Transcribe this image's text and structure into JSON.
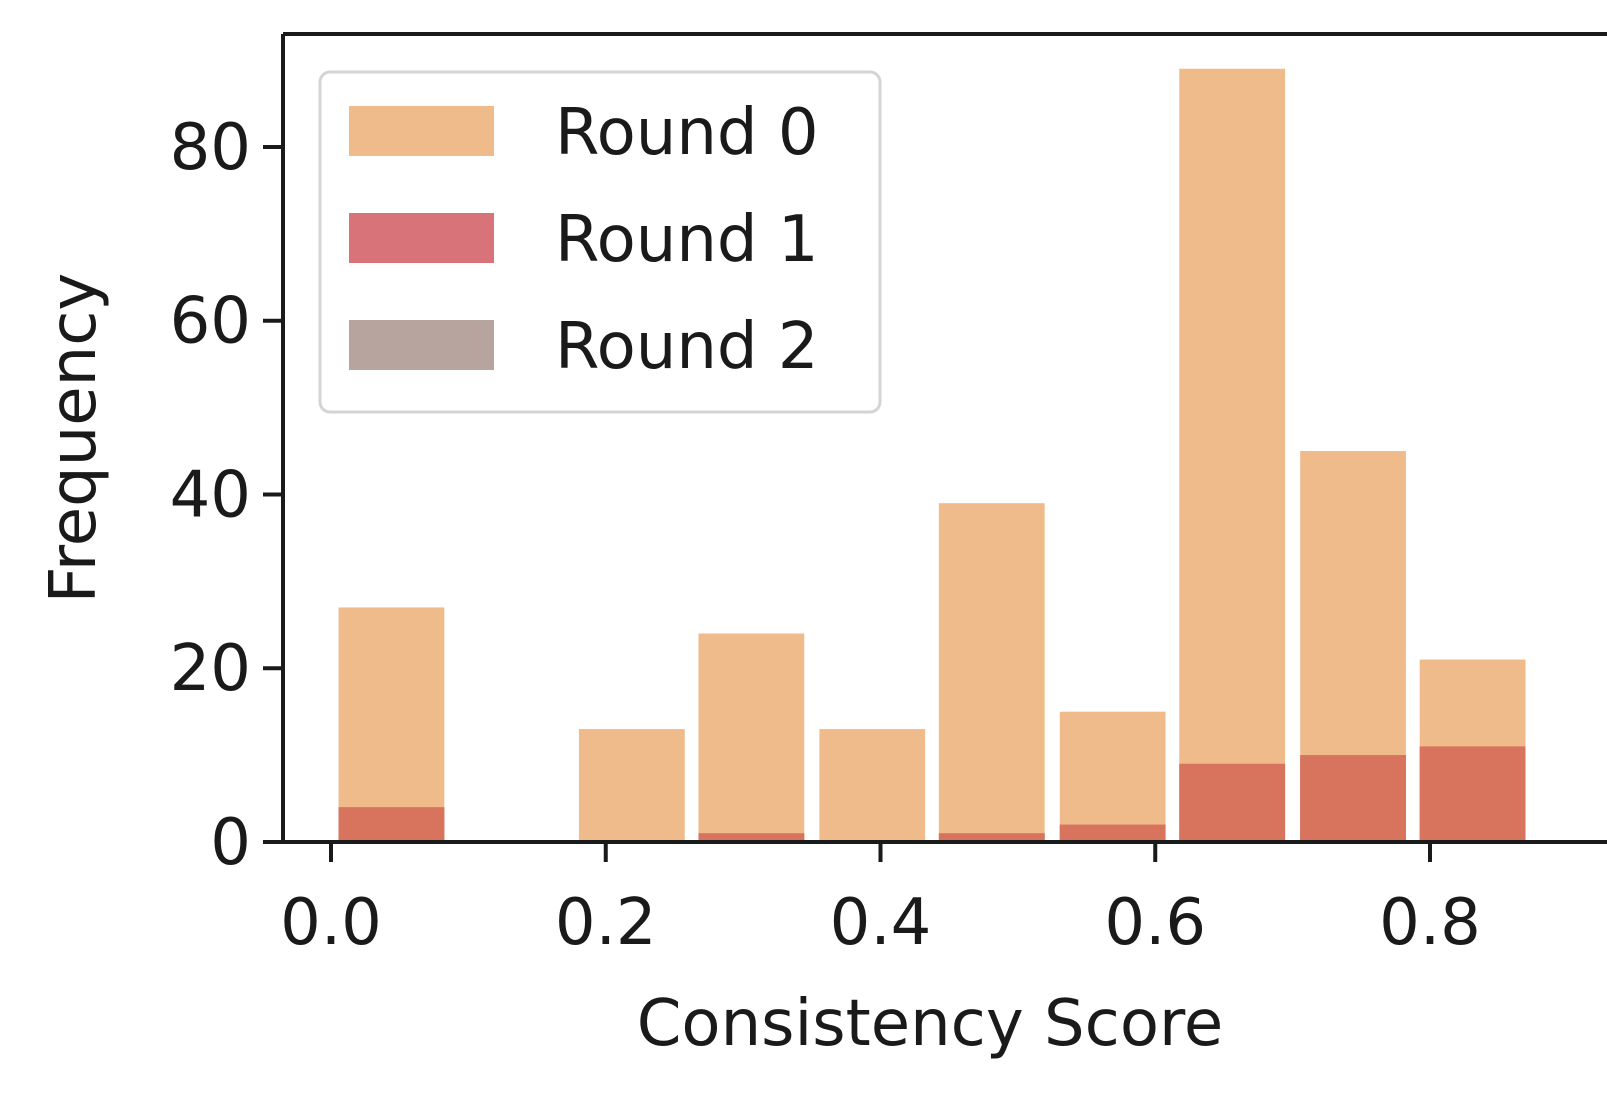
{
  "chart_data": {
    "type": "bar",
    "xlabel": "Consistency Score",
    "ylabel": "Frequency",
    "xlim": [
      -0.02,
      0.9
    ],
    "ylim": [
      0,
      93
    ],
    "xticks": [
      "0.0",
      "0.2",
      "0.4",
      "0.6",
      "0.8"
    ],
    "yticks": [
      "0",
      "20",
      "40",
      "60",
      "80"
    ],
    "bin_width": 0.0875,
    "bin_centers": [
      0.044,
      0.219,
      0.306,
      0.394,
      0.481,
      0.569,
      0.656,
      0.744,
      0.831
    ],
    "legend_position": "top-left",
    "series": [
      {
        "name": "Round 0",
        "color": "#f0bb8b",
        "values": [
          27,
          13,
          24,
          13,
          39,
          15,
          89,
          45,
          21
        ]
      },
      {
        "name": "Round 1",
        "color": "#d9737a",
        "values": [
          4,
          0,
          1,
          0,
          1,
          2,
          9,
          10,
          11
        ]
      },
      {
        "name": "Round 2",
        "color": "#b8a49e",
        "values": [
          0,
          0,
          0,
          0,
          0,
          0,
          0,
          0,
          0
        ]
      }
    ]
  }
}
